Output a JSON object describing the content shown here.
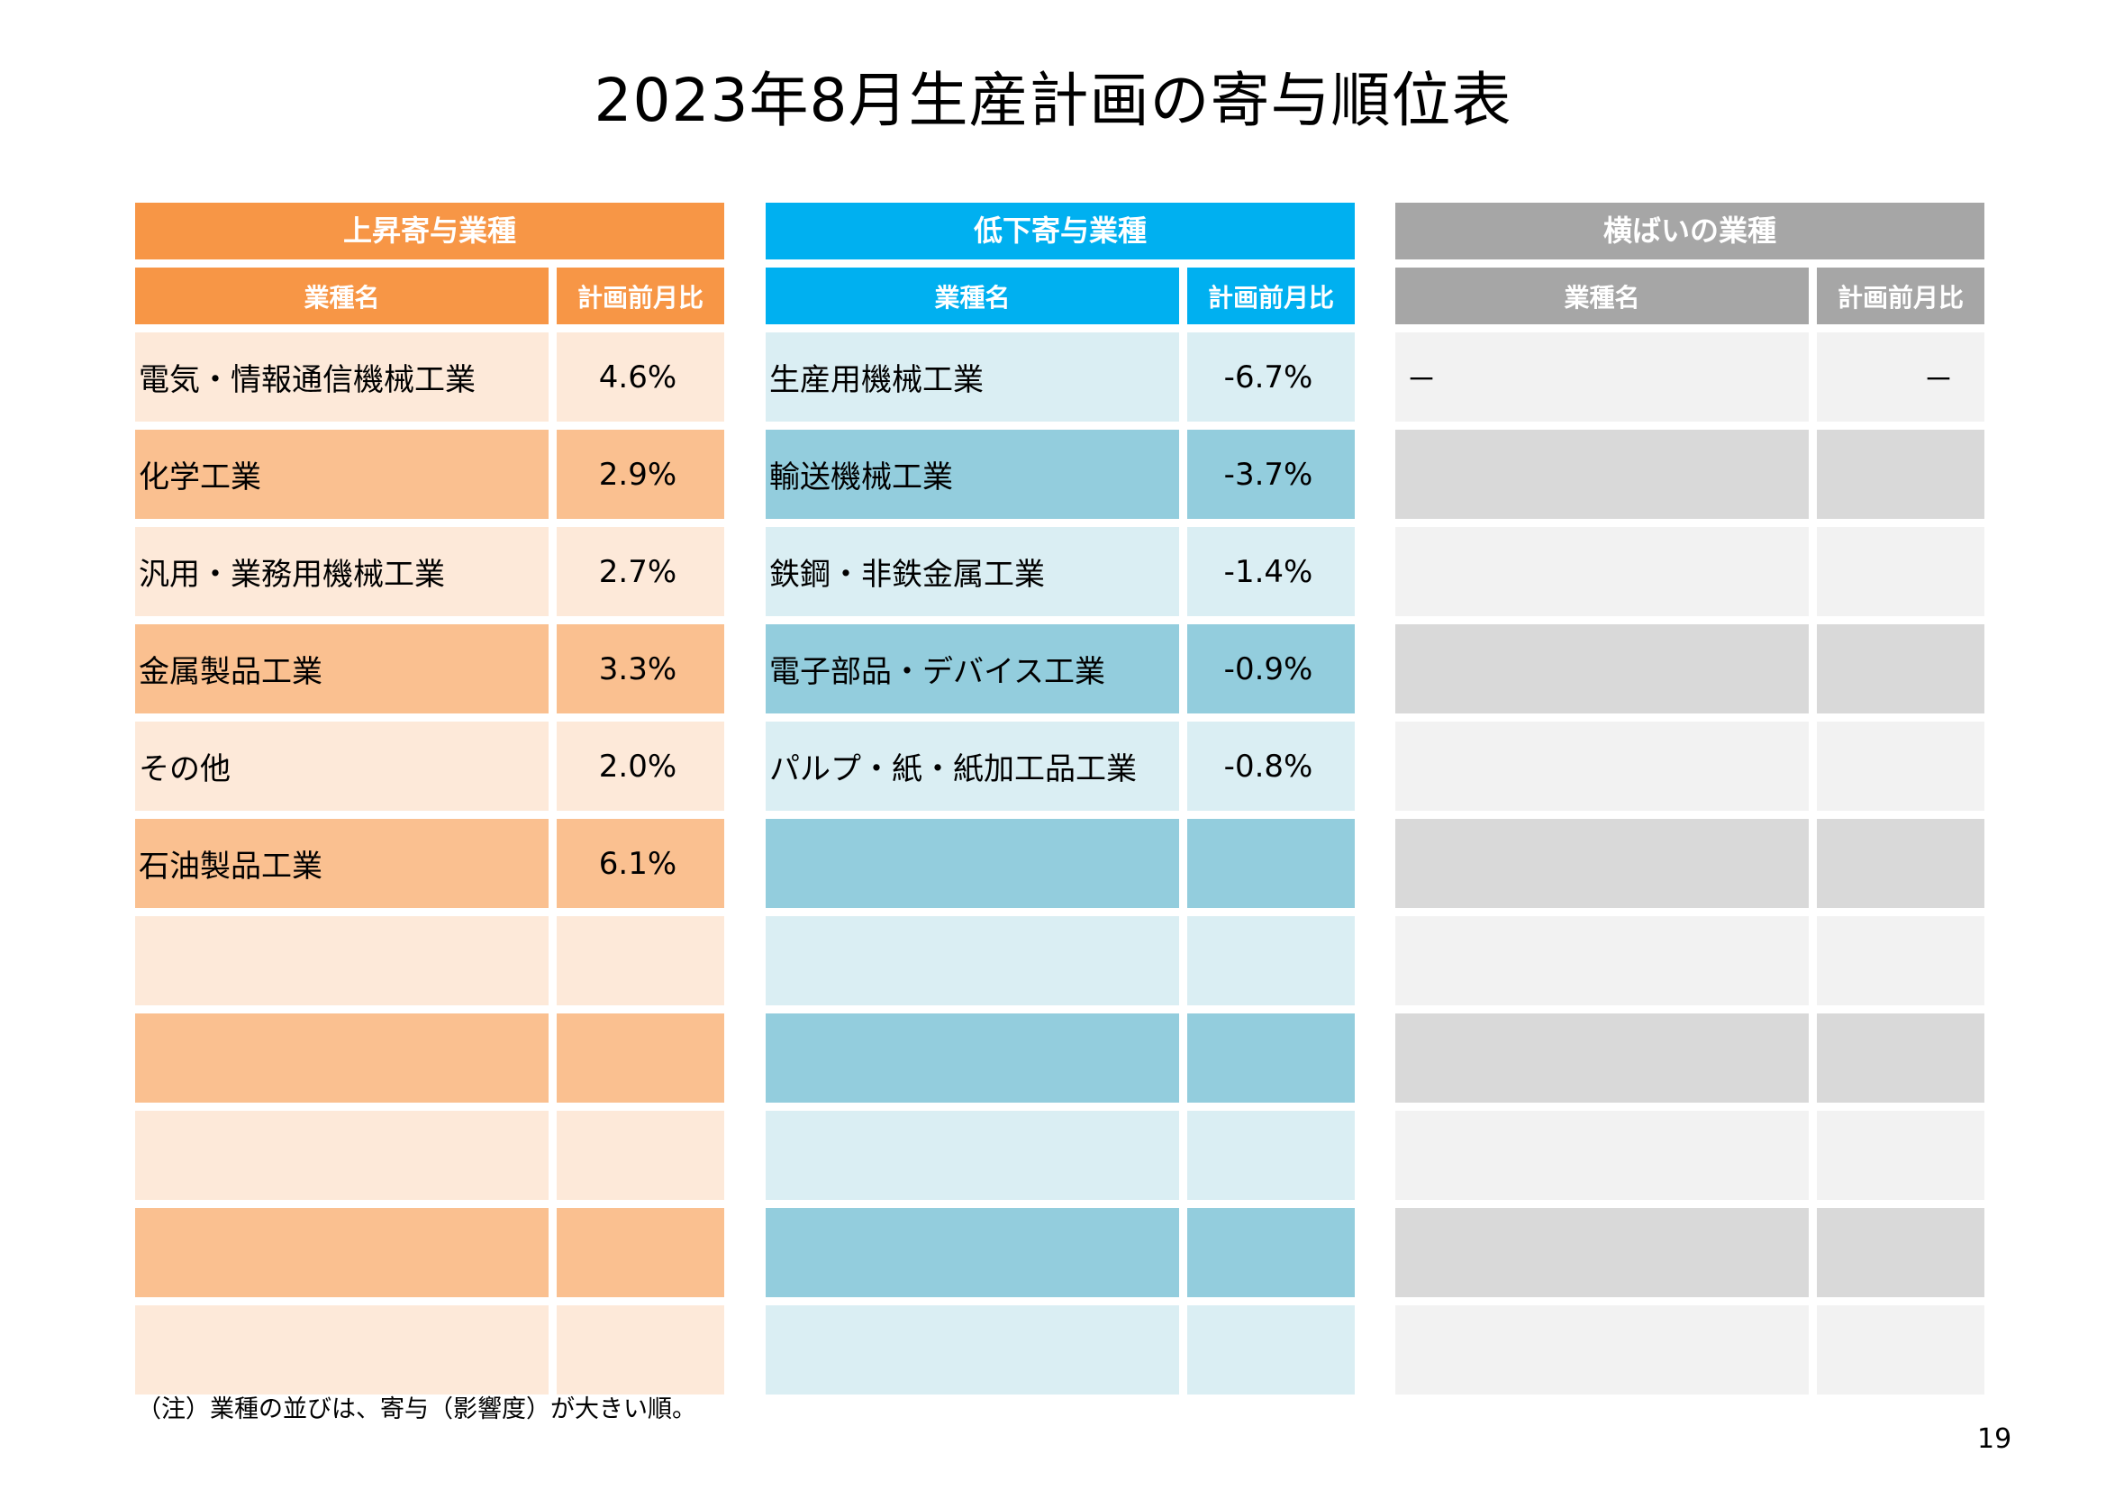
{
  "title": "2023年8月生産計画の寄与順位表",
  "colors": {
    "up_header": "#F79646",
    "up_light": "#FDE9D9",
    "up_dark": "#FAC090",
    "down_header": "#00B0F0",
    "down_light": "#DAEEF3",
    "down_dark": "#93CDDD",
    "flat_header": "#A6A6A6",
    "flat_light": "#F2F2F2",
    "flat_dark": "#D9D9D9"
  },
  "panels": {
    "up": {
      "header": "上昇寄与業種",
      "col1": "業種名",
      "col2": "計画前月比",
      "rows": [
        {
          "name": "電気・情報通信機械工業",
          "value": "4.6%"
        },
        {
          "name": "化学工業",
          "value": "2.9%"
        },
        {
          "name": "汎用・業務用機械工業",
          "value": "2.7%"
        },
        {
          "name": "金属製品工業",
          "value": "3.3%"
        },
        {
          "name": "その他",
          "value": "2.0%"
        },
        {
          "name": "石油製品工業",
          "value": "6.1%"
        },
        {
          "name": "",
          "value": ""
        },
        {
          "name": "",
          "value": ""
        },
        {
          "name": "",
          "value": ""
        },
        {
          "name": "",
          "value": ""
        },
        {
          "name": "",
          "value": ""
        }
      ]
    },
    "down": {
      "header": "低下寄与業種",
      "col1": "業種名",
      "col2": "計画前月比",
      "rows": [
        {
          "name": "生産用機械工業",
          "value": "-6.7%"
        },
        {
          "name": "輸送機械工業",
          "value": "-3.7%"
        },
        {
          "name": "鉄鋼・非鉄金属工業",
          "value": "-1.4%"
        },
        {
          "name": "電子部品・デバイス工業",
          "value": "-0.9%"
        },
        {
          "name": "パルプ・紙・紙加工品工業",
          "value": "-0.8%"
        },
        {
          "name": "",
          "value": ""
        },
        {
          "name": "",
          "value": ""
        },
        {
          "name": "",
          "value": ""
        },
        {
          "name": "",
          "value": ""
        },
        {
          "name": "",
          "value": ""
        },
        {
          "name": "",
          "value": ""
        }
      ]
    },
    "flat": {
      "header": "横ばいの業種",
      "col1": "業種名",
      "col2": "計画前月比",
      "rows": [
        {
          "name": "－",
          "value": "－"
        },
        {
          "name": "",
          "value": ""
        },
        {
          "name": "",
          "value": ""
        },
        {
          "name": "",
          "value": ""
        },
        {
          "name": "",
          "value": ""
        },
        {
          "name": "",
          "value": ""
        },
        {
          "name": "",
          "value": ""
        },
        {
          "name": "",
          "value": ""
        },
        {
          "name": "",
          "value": ""
        },
        {
          "name": "",
          "value": ""
        },
        {
          "name": "",
          "value": ""
        }
      ]
    }
  },
  "note": "（注）業種の並びは、寄与（影響度）が大きい順。",
  "page_number": "19"
}
